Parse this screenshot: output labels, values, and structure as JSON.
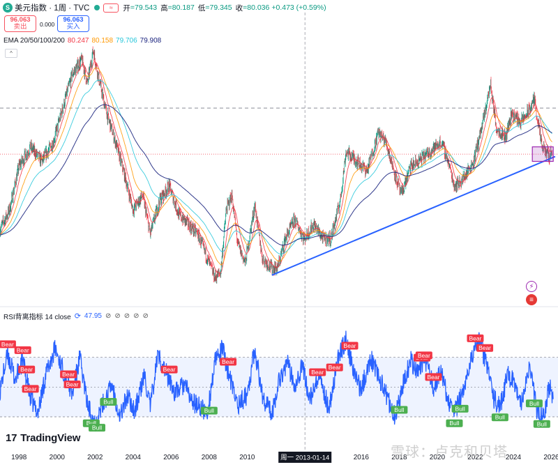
{
  "header": {
    "symbol_icon": "S",
    "title": "美元指数 · 1周 · TVC",
    "flag_icon": "≈",
    "ohlc": [
      {
        "label": "开",
        "value": "=79.543"
      },
      {
        "label": "高",
        "value": "=80.187"
      },
      {
        "label": "低",
        "value": "=79.345"
      },
      {
        "label": "收",
        "value": "=80.036"
      },
      {
        "label": "",
        "value": "+0.473 (+0.59%)"
      }
    ]
  },
  "trade": {
    "sell_price": "96.063",
    "sell_label": "卖出",
    "buy_price": "96.063",
    "buy_label": "买入",
    "spread": "0.000"
  },
  "ema": {
    "label": "EMA 20/50/100/200",
    "values": [
      {
        "v": "80.247",
        "color": "#f23645"
      },
      {
        "v": "80.158",
        "color": "#ff9800"
      },
      {
        "v": "79.706",
        "color": "#26c6da"
      },
      {
        "v": "79.908",
        "color": "#1a237e"
      }
    ],
    "collapse_icon": "^"
  },
  "rsi": {
    "label": "RSI背离指标 14 close",
    "value": "47.95",
    "value_color": "#2962ff"
  },
  "brand": {
    "logo": "TradingView",
    "logo_mark": "17"
  },
  "watermark": "雪球：卢克和贝塔",
  "chart_data": {
    "type": "line",
    "title": "美元指数 · 1周 · TVC",
    "x_tick_labels": [
      "1998",
      "2000",
      "2002",
      "2004",
      "2006",
      "2008",
      "2010",
      "2016",
      "2018",
      "2020",
      "2022",
      "2024",
      "2026"
    ],
    "crosshair_date": "周一 2013-01-14",
    "grid": false,
    "price_path": [
      [
        1997.0,
        82
      ],
      [
        1997.5,
        86
      ],
      [
        1998.0,
        95
      ],
      [
        1998.6,
        99
      ],
      [
        1999.2,
        96
      ],
      [
        1999.8,
        100
      ],
      [
        2000.3,
        107
      ],
      [
        2000.8,
        114
      ],
      [
        2001.3,
        117
      ],
      [
        2001.6,
        112
      ],
      [
        2001.9,
        119
      ],
      [
        2002.2,
        113
      ],
      [
        2002.6,
        106
      ],
      [
        2003.0,
        101
      ],
      [
        2003.5,
        94
      ],
      [
        2004.0,
        86
      ],
      [
        2004.5,
        89
      ],
      [
        2004.9,
        81
      ],
      [
        2005.4,
        88
      ],
      [
        2005.9,
        91
      ],
      [
        2006.4,
        85
      ],
      [
        2006.9,
        83
      ],
      [
        2007.4,
        81
      ],
      [
        2007.9,
        76
      ],
      [
        2008.3,
        72
      ],
      [
        2008.6,
        73
      ],
      [
        2008.9,
        86
      ],
      [
        2009.2,
        89
      ],
      [
        2009.5,
        79
      ],
      [
        2009.9,
        75
      ],
      [
        2010.4,
        87
      ],
      [
        2010.8,
        76
      ],
      [
        2011.3,
        74
      ],
      [
        2011.6,
        74
      ],
      [
        2012.0,
        80
      ],
      [
        2012.5,
        84
      ],
      [
        2013.0,
        80
      ],
      [
        2013.5,
        83
      ],
      [
        2014.0,
        80
      ],
      [
        2014.4,
        80
      ],
      [
        2014.9,
        88
      ],
      [
        2015.2,
        98
      ],
      [
        2015.8,
        96
      ],
      [
        2016.3,
        94
      ],
      [
        2016.9,
        102
      ],
      [
        2017.3,
        100
      ],
      [
        2017.8,
        93
      ],
      [
        2018.1,
        89
      ],
      [
        2018.6,
        95
      ],
      [
        2019.0,
        96
      ],
      [
        2019.6,
        98
      ],
      [
        2020.2,
        100
      ],
      [
        2020.5,
        97
      ],
      [
        2020.9,
        91
      ],
      [
        2021.3,
        92
      ],
      [
        2021.9,
        96
      ],
      [
        2022.4,
        104
      ],
      [
        2022.8,
        112
      ],
      [
        2023.1,
        103
      ],
      [
        2023.6,
        101
      ],
      [
        2023.9,
        106
      ],
      [
        2024.4,
        104
      ],
      [
        2024.9,
        107
      ],
      [
        2025.1,
        109
      ],
      [
        2025.5,
        99
      ],
      [
        2025.9,
        97
      ],
      [
        2026.0,
        98
      ]
    ],
    "ema_series": [
      {
        "name": "EMA 20",
        "color": "#f23645"
      },
      {
        "name": "EMA 50",
        "color": "#ff9800"
      },
      {
        "name": "EMA 100",
        "color": "#26c6da"
      },
      {
        "name": "EMA 200",
        "color": "#1a237e"
      }
    ],
    "trendline": {
      "from": [
        2011.3,
        72.5
      ],
      "to": [
        2026.2,
        97
      ],
      "color": "#2962ff"
    },
    "support_zone": {
      "x": [
        2025.0,
        2026.1
      ],
      "y": [
        96,
        99
      ],
      "color": "#9c27b0"
    },
    "horizontal_levels": [
      {
        "price": 107,
        "style": "dashed",
        "color": "#787b86"
      },
      {
        "price": 97.5,
        "style": "dotted",
        "color": "#f23645"
      }
    ],
    "rsi_panel": {
      "overbought_level": 70,
      "oversold_level": 30,
      "midline": 50,
      "line_color": "#2962ff",
      "rsi_path": [
        [
          1997.0,
          48
        ],
        [
          1997.4,
          72
        ],
        [
          1997.8,
          55
        ],
        [
          1998.2,
          68
        ],
        [
          1998.6,
          42
        ],
        [
          1999.0,
          33
        ],
        [
          1999.4,
          58
        ],
        [
          1999.9,
          76
        ],
        [
          2000.3,
          62
        ],
        [
          2000.8,
          45
        ],
        [
          2001.2,
          70
        ],
        [
          2001.6,
          38
        ],
        [
          2002.0,
          26
        ],
        [
          2002.4,
          38
        ],
        [
          2002.9,
          52
        ],
        [
          2003.3,
          30
        ],
        [
          2003.7,
          44
        ],
        [
          2004.1,
          34
        ],
        [
          2004.6,
          58
        ],
        [
          2004.9,
          36
        ],
        [
          2005.3,
          72
        ],
        [
          2005.8,
          58
        ],
        [
          2006.2,
          46
        ],
        [
          2006.7,
          52
        ],
        [
          2007.1,
          40
        ],
        [
          2007.6,
          36
        ],
        [
          2007.9,
          32
        ],
        [
          2008.3,
          66
        ],
        [
          2008.7,
          76
        ],
        [
          2009.1,
          55
        ],
        [
          2009.5,
          38
        ],
        [
          2010.0,
          45
        ],
        [
          2010.4,
          76
        ],
        [
          2010.8,
          44
        ],
        [
          2011.3,
          32
        ],
        [
          2011.7,
          56
        ],
        [
          2012.1,
          66
        ],
        [
          2012.5,
          52
        ],
        [
          2012.9,
          64
        ],
        [
          2013.3,
          42
        ],
        [
          2013.8,
          56
        ],
        [
          2014.3,
          36
        ],
        [
          2014.8,
          70
        ],
        [
          2015.2,
          82
        ],
        [
          2015.6,
          60
        ],
        [
          2016.0,
          48
        ],
        [
          2016.5,
          70
        ],
        [
          2016.9,
          58
        ],
        [
          2017.4,
          42
        ],
        [
          2017.8,
          30
        ],
        [
          2018.2,
          52
        ],
        [
          2018.6,
          68
        ],
        [
          2019.0,
          60
        ],
        [
          2019.4,
          66
        ],
        [
          2019.8,
          50
        ],
        [
          2020.2,
          60
        ],
        [
          2020.6,
          40
        ],
        [
          2020.9,
          32
        ],
        [
          2021.3,
          45
        ],
        [
          2021.8,
          72
        ],
        [
          2022.2,
          80
        ],
        [
          2022.6,
          66
        ],
        [
          2022.9,
          44
        ],
        [
          2023.3,
          36
        ],
        [
          2023.7,
          58
        ],
        [
          2024.1,
          52
        ],
        [
          2024.4,
          40
        ],
        [
          2024.9,
          64
        ],
        [
          2025.2,
          36
        ],
        [
          2025.6,
          30
        ],
        [
          2025.9,
          52
        ],
        [
          2026.1,
          40
        ]
      ],
      "divergence_signals": [
        {
          "label": "Bear",
          "x": 1997.4
        },
        {
          "label": "Bear",
          "x": 1998.2
        },
        {
          "label": "Bear",
          "x": 1998.4
        },
        {
          "label": "Bear",
          "x": 1998.6
        },
        {
          "label": "Bear",
          "x": 2000.6
        },
        {
          "label": "Bear",
          "x": 2000.8
        },
        {
          "label": "Bull",
          "x": 2001.8
        },
        {
          "label": "Bull",
          "x": 2002.1
        },
        {
          "label": "Bull",
          "x": 2002.7
        },
        {
          "label": "Bear",
          "x": 2005.9
        },
        {
          "label": "Bull",
          "x": 2008.0
        },
        {
          "label": "Bear",
          "x": 2009.0
        },
        {
          "label": "Bear",
          "x": 2013.7
        },
        {
          "label": "Bear",
          "x": 2014.6
        },
        {
          "label": "Bear",
          "x": 2015.4
        },
        {
          "label": "Bull",
          "x": 2018.0
        },
        {
          "label": "Bear",
          "x": 2019.2
        },
        {
          "label": "Bear",
          "x": 2019.3
        },
        {
          "label": "Bear",
          "x": 2019.8
        },
        {
          "label": "Bull",
          "x": 2021.2
        },
        {
          "label": "Bull",
          "x": 2020.9
        },
        {
          "label": "Bear",
          "x": 2022.0
        },
        {
          "label": "Bear",
          "x": 2022.5
        },
        {
          "label": "Bull",
          "x": 2023.3
        },
        {
          "label": "Bull",
          "x": 2025.1
        },
        {
          "label": "Bull",
          "x": 2025.5
        }
      ]
    }
  }
}
